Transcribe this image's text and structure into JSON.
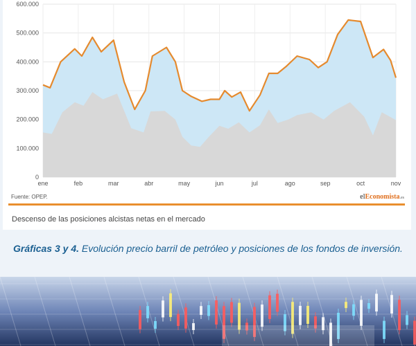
{
  "chart_data": {
    "type": "area",
    "title": "",
    "xlabel": "",
    "ylabel": "",
    "ylim": [
      0,
      600000
    ],
    "yticks": [
      {
        "value": 0,
        "label": "0"
      },
      {
        "value": 100000,
        "label": "100.000"
      },
      {
        "value": 200000,
        "label": "200.000"
      },
      {
        "value": 300000,
        "label": "300.000"
      },
      {
        "value": 400000,
        "label": "400.000"
      },
      {
        "value": 500000,
        "label": "500.000"
      },
      {
        "value": 600000,
        "label": "600.000"
      }
    ],
    "xlim": [
      0,
      10
    ],
    "xticks": [
      {
        "value": 0,
        "label": "ene"
      },
      {
        "value": 1,
        "label": "feb"
      },
      {
        "value": 2,
        "label": "mar"
      },
      {
        "value": 3,
        "label": "abr"
      },
      {
        "value": 4,
        "label": "may"
      },
      {
        "value": 5,
        "label": "jun"
      },
      {
        "value": 6,
        "label": "jul"
      },
      {
        "value": 7,
        "label": "ago"
      },
      {
        "value": 8,
        "label": "sep"
      },
      {
        "value": 9,
        "label": "oct"
      },
      {
        "value": 10,
        "label": "nov"
      }
    ],
    "grid": true,
    "series": [
      {
        "name": "",
        "color": "#e58a2e",
        "fill": "#cde7f6",
        "points": [
          [
            0,
            320000
          ],
          [
            0.2,
            310000
          ],
          [
            0.5,
            400000
          ],
          [
            0.9,
            445000
          ],
          [
            1.1,
            420000
          ],
          [
            1.4,
            485000
          ],
          [
            1.65,
            435000
          ],
          [
            2.0,
            475000
          ],
          [
            2.3,
            330000
          ],
          [
            2.6,
            235000
          ],
          [
            2.9,
            300000
          ],
          [
            3.1,
            420000
          ],
          [
            3.5,
            450000
          ],
          [
            3.75,
            400000
          ],
          [
            3.95,
            300000
          ],
          [
            4.2,
            280000
          ],
          [
            4.5,
            263000
          ],
          [
            4.75,
            270000
          ],
          [
            5.0,
            270000
          ],
          [
            5.15,
            300000
          ],
          [
            5.35,
            278000
          ],
          [
            5.6,
            295000
          ],
          [
            5.85,
            230000
          ],
          [
            6.15,
            285000
          ],
          [
            6.4,
            360000
          ],
          [
            6.65,
            360000
          ],
          [
            6.9,
            385000
          ],
          [
            7.2,
            420000
          ],
          [
            7.55,
            408000
          ],
          [
            7.8,
            380000
          ],
          [
            8.05,
            400000
          ],
          [
            8.35,
            495000
          ],
          [
            8.65,
            545000
          ],
          [
            9.0,
            540000
          ],
          [
            9.35,
            415000
          ],
          [
            9.65,
            443000
          ],
          [
            9.85,
            405000
          ],
          [
            10.0,
            345000
          ]
        ]
      },
      {
        "name": "",
        "color": "#d8d8d8",
        "points": [
          [
            0,
            155000
          ],
          [
            0.25,
            150000
          ],
          [
            0.55,
            225000
          ],
          [
            0.9,
            260000
          ],
          [
            1.15,
            248000
          ],
          [
            1.4,
            295000
          ],
          [
            1.7,
            270000
          ],
          [
            2.1,
            290000
          ],
          [
            2.5,
            170000
          ],
          [
            2.85,
            155000
          ],
          [
            3.05,
            228000
          ],
          [
            3.45,
            230000
          ],
          [
            3.75,
            200000
          ],
          [
            3.95,
            140000
          ],
          [
            4.2,
            110000
          ],
          [
            4.45,
            105000
          ],
          [
            4.7,
            140000
          ],
          [
            5.0,
            178000
          ],
          [
            5.25,
            168000
          ],
          [
            5.55,
            190000
          ],
          [
            5.85,
            155000
          ],
          [
            6.15,
            180000
          ],
          [
            6.4,
            235000
          ],
          [
            6.65,
            188000
          ],
          [
            6.95,
            200000
          ],
          [
            7.2,
            215000
          ],
          [
            7.6,
            225000
          ],
          [
            7.95,
            200000
          ],
          [
            8.25,
            230000
          ],
          [
            8.7,
            260000
          ],
          [
            9.1,
            210000
          ],
          [
            9.35,
            145000
          ],
          [
            9.6,
            225000
          ],
          [
            9.85,
            208000
          ],
          [
            10.0,
            198000
          ]
        ]
      }
    ]
  },
  "source_label": "Fuente: OPEP.",
  "brand": {
    "prefix": "el",
    "mid": "Economista",
    "tld": ".es"
  },
  "chart_subtitle": "Descenso de las posiciones alcistas netas en el mercado",
  "caption": {
    "bold": "Gráficas 3 y 4.",
    "rest": " Evolución precio barril de petróleo y posiciones de los fondos de inversión."
  }
}
